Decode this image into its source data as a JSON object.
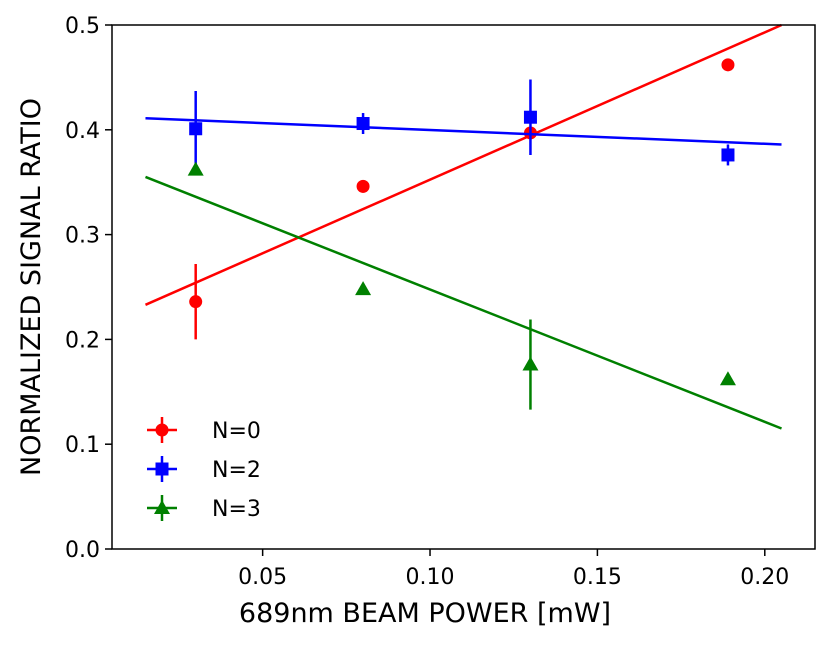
{
  "chart_data": {
    "type": "scatter",
    "title": "",
    "xlabel": "689nm BEAM POWER [mW]",
    "ylabel": "NORMALIZED SIGNAL RATIO",
    "xlim": [
      0.005,
      0.215
    ],
    "ylim": [
      0.0,
      0.5
    ],
    "xticks": [
      0.05,
      0.1,
      0.15,
      0.2
    ],
    "xtick_labels": [
      "0.05",
      "0.10",
      "0.15",
      "0.20"
    ],
    "yticks": [
      0.0,
      0.1,
      0.2,
      0.3,
      0.4,
      0.5
    ],
    "ytick_labels": [
      "0.0",
      "0.1",
      "0.2",
      "0.3",
      "0.4",
      "0.5"
    ],
    "grid": false,
    "legend_position": "lower-left",
    "series": [
      {
        "name": "N=0",
        "color": "#ff0000",
        "marker": "circle",
        "x": [
          0.03,
          0.08,
          0.13,
          0.189
        ],
        "y": [
          0.236,
          0.346,
          0.397,
          0.462
        ],
        "yerr": [
          0.036,
          0.006,
          0.0,
          0.0
        ],
        "fit": {
          "x": [
            0.015,
            0.205
          ],
          "y": [
            0.233,
            0.5
          ]
        }
      },
      {
        "name": "N=2",
        "color": "#0000ff",
        "marker": "square",
        "x": [
          0.03,
          0.08,
          0.13,
          0.189
        ],
        "y": [
          0.401,
          0.406,
          0.412,
          0.376
        ],
        "yerr": [
          0.036,
          0.01,
          0.036,
          0.01
        ],
        "fit": {
          "x": [
            0.015,
            0.205
          ],
          "y": [
            0.411,
            0.386
          ]
        }
      },
      {
        "name": "N=3",
        "color": "#008000",
        "marker": "triangle",
        "x": [
          0.03,
          0.08,
          0.13,
          0.189
        ],
        "y": [
          0.362,
          0.248,
          0.176,
          0.162
        ],
        "yerr": [
          0.0,
          0.0,
          0.043,
          0.0
        ],
        "fit": {
          "x": [
            0.015,
            0.205
          ],
          "y": [
            0.355,
            0.115
          ]
        }
      }
    ]
  }
}
